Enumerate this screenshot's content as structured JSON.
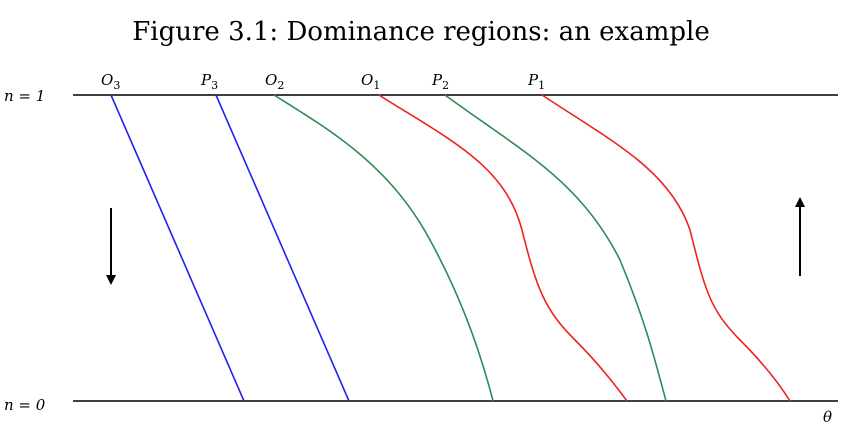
{
  "title": "Figure 3.1: Dominance regions: an example",
  "axis": {
    "top_label": "n = 1",
    "bottom_label": "n = 0",
    "x_label": "θ"
  },
  "curves": [
    {
      "letter": "O",
      "sub": "3"
    },
    {
      "letter": "P",
      "sub": "3"
    },
    {
      "letter": "O",
      "sub": "2"
    },
    {
      "letter": "O",
      "sub": "1"
    },
    {
      "letter": "P",
      "sub": "2"
    },
    {
      "letter": "P",
      "sub": "1"
    }
  ]
}
